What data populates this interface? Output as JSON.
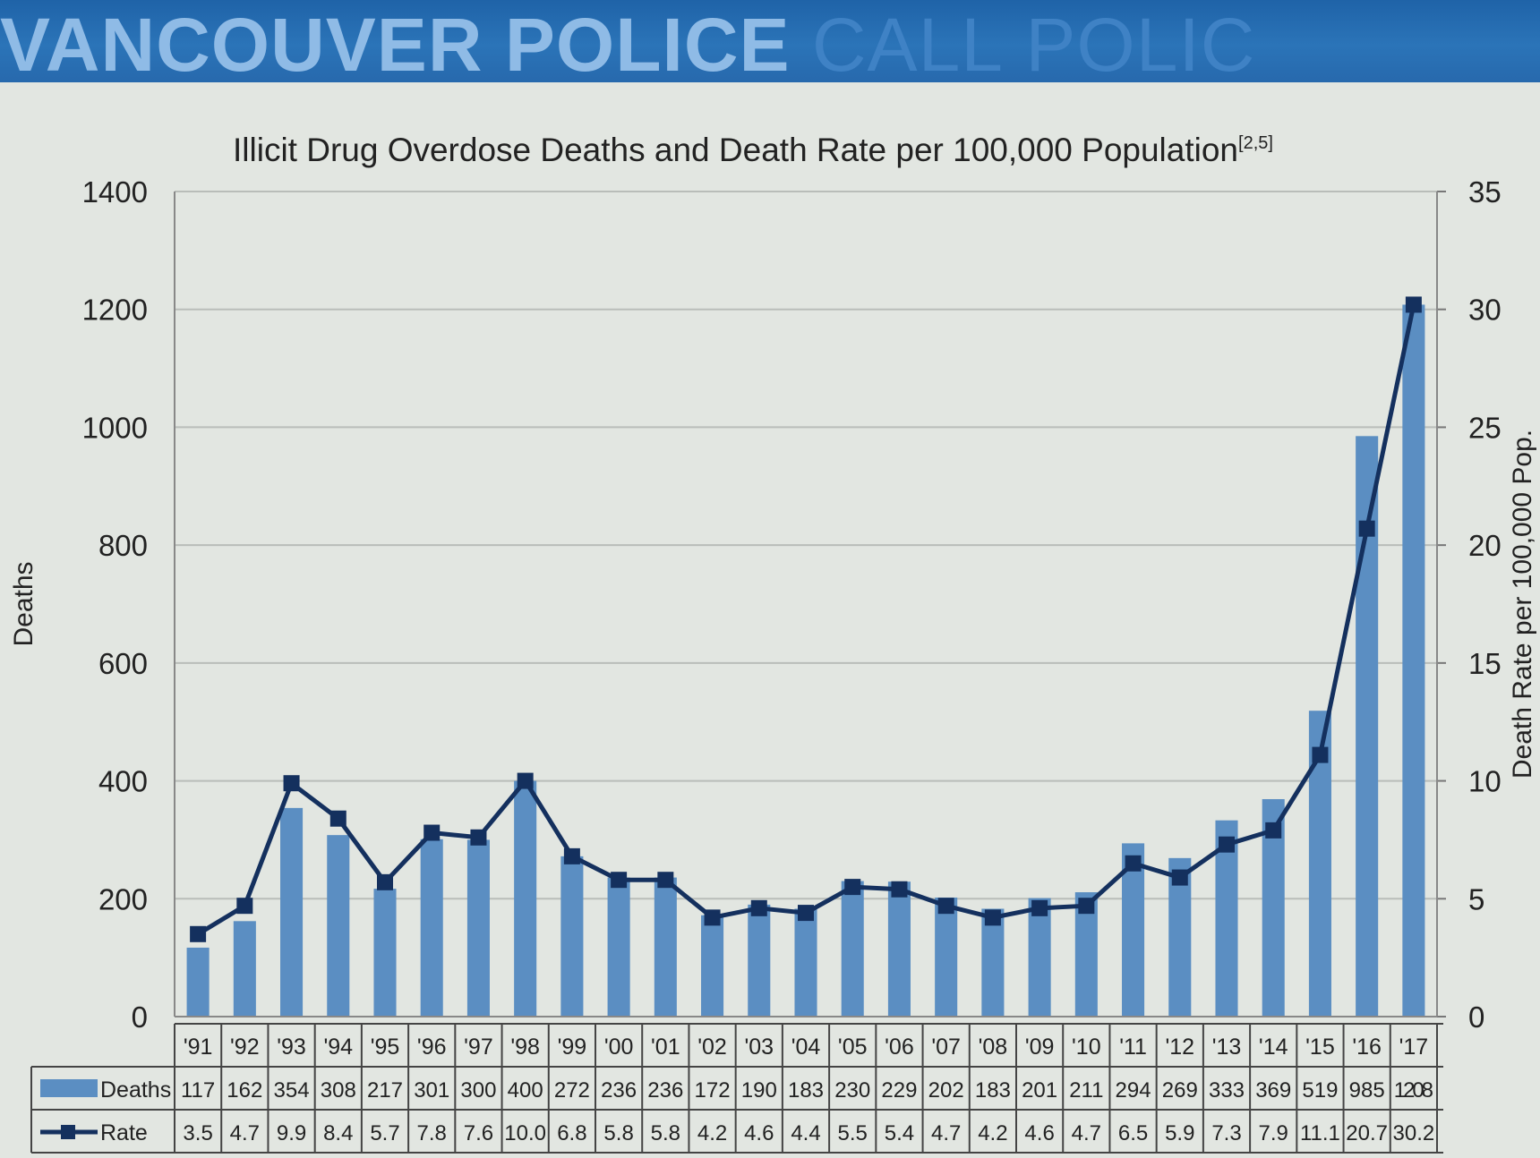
{
  "banner": {
    "text_main": "VANCOUVER POLICE",
    "text_faint": "CALL",
    "text_tail": "POLIC"
  },
  "chart_data": {
    "type": "bar",
    "title": "Illicit Drug Overdose Deaths and Death Rate per 100,000 Population",
    "title_ref": "[2,5]",
    "ylabel": "Deaths",
    "y2label": "Death Rate per 100,000 Pop.",
    "ylim": [
      0,
      1400
    ],
    "y2lim": [
      0,
      35
    ],
    "yticks": [
      "0",
      "200",
      "400",
      "600",
      "800",
      "1000",
      "1200",
      "1400"
    ],
    "y2ticks": [
      "0",
      "5",
      "10",
      "15",
      "20",
      "25",
      "30",
      "35"
    ],
    "grid": true,
    "categories": [
      "'91",
      "'92",
      "'93",
      "'94",
      "'95",
      "'96",
      "'97",
      "'98",
      "'99",
      "'00",
      "'01",
      "'02",
      "'03",
      "'04",
      "'05",
      "'06",
      "'07",
      "'08",
      "'09",
      "'10",
      "'11",
      "'12",
      "'13",
      "'14",
      "'15",
      "'16",
      "'17"
    ],
    "series": [
      {
        "name": "Deaths",
        "type": "bar",
        "axis": "left",
        "values": [
          117,
          162,
          354,
          308,
          217,
          301,
          300,
          400,
          272,
          236,
          236,
          172,
          190,
          183,
          230,
          229,
          202,
          183,
          201,
          211,
          294,
          269,
          333,
          369,
          519,
          985,
          1208
        ],
        "labels": [
          "117",
          "162",
          "354",
          "308",
          "217",
          "301",
          "300",
          "400",
          "272",
          "236",
          "236",
          "172",
          "190",
          "183",
          "230",
          "229",
          "202",
          "183",
          "201",
          "211",
          "294",
          "269",
          "333",
          "369",
          "519",
          "985",
          "1208"
        ]
      },
      {
        "name": "Rate",
        "type": "line",
        "axis": "right",
        "values": [
          3.5,
          4.7,
          9.9,
          8.4,
          5.7,
          7.8,
          7.6,
          10.0,
          6.8,
          5.8,
          5.8,
          4.2,
          4.6,
          4.4,
          5.5,
          5.4,
          4.7,
          4.2,
          4.6,
          4.7,
          6.5,
          5.9,
          7.3,
          7.9,
          11.1,
          20.7,
          30.2
        ],
        "labels": [
          "3.5",
          "4.7",
          "9.9",
          "8.4",
          "5.7",
          "7.8",
          "7.6",
          "10.0",
          "6.8",
          "5.8",
          "5.8",
          "4.2",
          "4.6",
          "4.4",
          "5.5",
          "5.4",
          "4.7",
          "4.2",
          "4.6",
          "4.7",
          "6.5",
          "5.9",
          "7.3",
          "7.9",
          "11.1",
          "20.7",
          "30.2"
        ]
      }
    ],
    "colors": {
      "bar": "#5b8ec2",
      "line": "#14305e",
      "grid": "#b9bdb9",
      "text": "#222222"
    },
    "legend_placement": "data-table-below"
  }
}
